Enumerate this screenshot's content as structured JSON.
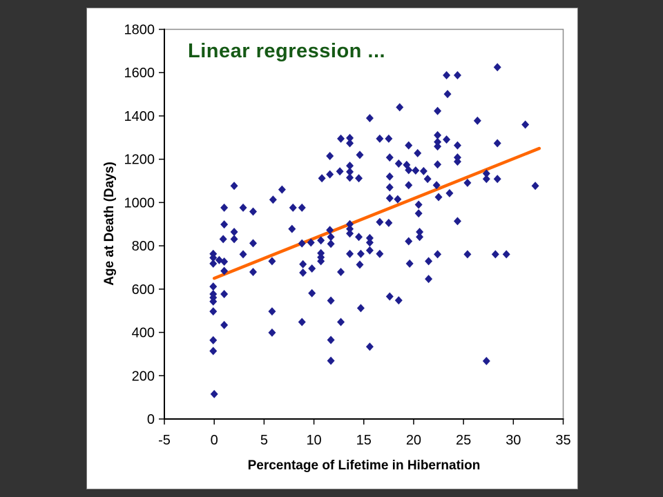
{
  "page": {
    "background": "#333333"
  },
  "slide": {
    "background": "#ffffff",
    "title_color": "#155915"
  },
  "chart_data": {
    "type": "scatter",
    "title": "Linear regression ...",
    "xlabel": "Percentage of Lifetime in Hibernation",
    "ylabel": "Age at Death (Days)",
    "xlim": [
      -5,
      35
    ],
    "ylim": [
      0,
      1800
    ],
    "x_ticks": [
      -5,
      0,
      5,
      10,
      15,
      20,
      25,
      30,
      35
    ],
    "y_ticks": [
      0,
      200,
      400,
      600,
      800,
      1000,
      1200,
      1400,
      1600,
      1800
    ],
    "grid": false,
    "legend": false,
    "axis_color": "#000000",
    "plot_border_color": "#8c8c8c",
    "tick_label_color": "#000000",
    "marker": {
      "shape": "diamond",
      "color": "#1E1E8F",
      "width": 11,
      "height": 12
    },
    "regression_line": {
      "color": "#FF6600",
      "stroke_width": 4.5,
      "x_start": 0,
      "y_start": 650,
      "x_end": 32.6,
      "y_end": 1250
    },
    "points": [
      [
        0,
        115
      ],
      [
        2,
        1077
      ],
      [
        6.8,
        1060
      ],
      [
        5.9,
        1013
      ],
      [
        1,
        976
      ],
      [
        2.9,
        976
      ],
      [
        3.9,
        958
      ],
      [
        7.9,
        976
      ],
      [
        8.8,
        976
      ],
      [
        1,
        899
      ],
      [
        7.8,
        878
      ],
      [
        18.6,
        1440
      ],
      [
        15.6,
        1390
      ],
      [
        12.7,
        1295
      ],
      [
        13.6,
        1298
      ],
      [
        13.6,
        1274
      ],
      [
        16.6,
        1295
      ],
      [
        17.5,
        1295
      ],
      [
        14.6,
        1220
      ],
      [
        19.5,
        1264
      ],
      [
        20.4,
        1228
      ],
      [
        11.6,
        1215
      ],
      [
        17.6,
        1208
      ],
      [
        18.5,
        1180
      ],
      [
        19.3,
        1174
      ],
      [
        19.5,
        1150
      ],
      [
        20.2,
        1148
      ],
      [
        21,
        1145
      ],
      [
        12.6,
        1144
      ],
      [
        11.6,
        1130
      ],
      [
        13.6,
        1170
      ],
      [
        13.6,
        1142
      ],
      [
        13.6,
        1115
      ],
      [
        14.5,
        1112
      ],
      [
        10.8,
        1112
      ],
      [
        17.6,
        1120
      ],
      [
        19.5,
        1080
      ],
      [
        17.6,
        1070
      ],
      [
        17.6,
        1020
      ],
      [
        18.4,
        1015
      ],
      [
        20.5,
        990
      ],
      [
        20.5,
        950
      ],
      [
        16.6,
        910
      ],
      [
        17.5,
        906
      ],
      [
        28.4,
        1625
      ],
      [
        23.3,
        1588
      ],
      [
        24.4,
        1588
      ],
      [
        23.4,
        1501
      ],
      [
        22.4,
        1423
      ],
      [
        26.4,
        1378
      ],
      [
        31.2,
        1360
      ],
      [
        22.4,
        1311
      ],
      [
        23.3,
        1291
      ],
      [
        22.4,
        1280
      ],
      [
        22.4,
        1259
      ],
      [
        24.4,
        1264
      ],
      [
        28.4,
        1274
      ],
      [
        24.4,
        1208
      ],
      [
        24.4,
        1189
      ],
      [
        22.4,
        1176
      ],
      [
        21.4,
        1109
      ],
      [
        27.3,
        1134
      ],
      [
        27.3,
        1109
      ],
      [
        28.4,
        1109
      ],
      [
        25.4,
        1091
      ],
      [
        22.3,
        1080
      ],
      [
        32.2,
        1077
      ],
      [
        22.5,
        1025
      ],
      [
        23.6,
        1043
      ],
      [
        24.4,
        914
      ],
      [
        2,
        864
      ],
      [
        2,
        831
      ],
      [
        0.9,
        831
      ],
      [
        3.9,
        812
      ],
      [
        -0.1,
        763
      ],
      [
        -0.1,
        745
      ],
      [
        -0.1,
        718
      ],
      [
        0.5,
        734
      ],
      [
        1,
        727
      ],
      [
        2.9,
        761
      ],
      [
        3.9,
        679
      ],
      [
        1,
        684
      ],
      [
        5.8,
        729
      ],
      [
        -0.1,
        612
      ],
      [
        -0.1,
        577
      ],
      [
        -0.1,
        561
      ],
      [
        -0.1,
        543
      ],
      [
        1,
        577
      ],
      [
        -0.1,
        497
      ],
      [
        5.8,
        497
      ],
      [
        1,
        434
      ],
      [
        5.8,
        399
      ],
      [
        -0.1,
        364
      ],
      [
        -0.1,
        314
      ],
      [
        13.6,
        900
      ],
      [
        13.6,
        878
      ],
      [
        13.6,
        857
      ],
      [
        11.6,
        873
      ],
      [
        11.7,
        841
      ],
      [
        11.7,
        809
      ],
      [
        14.5,
        841
      ],
      [
        15.6,
        836
      ],
      [
        15.6,
        815
      ],
      [
        9.7,
        815
      ],
      [
        8.8,
        811
      ],
      [
        10.7,
        825
      ],
      [
        15.6,
        779
      ],
      [
        10.7,
        766
      ],
      [
        10.7,
        747
      ],
      [
        10.7,
        729
      ],
      [
        13.6,
        763
      ],
      [
        14.7,
        763
      ],
      [
        16.6,
        763
      ],
      [
        8.9,
        715
      ],
      [
        8.9,
        676
      ],
      [
        9.8,
        695
      ],
      [
        14.6,
        713
      ],
      [
        19.6,
        718
      ],
      [
        19.5,
        821
      ],
      [
        12.7,
        679
      ],
      [
        9.8,
        581
      ],
      [
        11.7,
        547
      ],
      [
        17.6,
        566
      ],
      [
        18.5,
        548
      ],
      [
        14.7,
        512
      ],
      [
        8.8,
        448
      ],
      [
        12.7,
        448
      ],
      [
        11.7,
        365
      ],
      [
        15.6,
        334
      ],
      [
        11.7,
        269
      ],
      [
        20.6,
        864
      ],
      [
        20.6,
        841
      ],
      [
        22.4,
        761
      ],
      [
        21.5,
        729
      ],
      [
        25.4,
        761
      ],
      [
        28.2,
        761
      ],
      [
        29.3,
        761
      ],
      [
        21.5,
        647
      ],
      [
        27.3,
        268
      ]
    ]
  }
}
